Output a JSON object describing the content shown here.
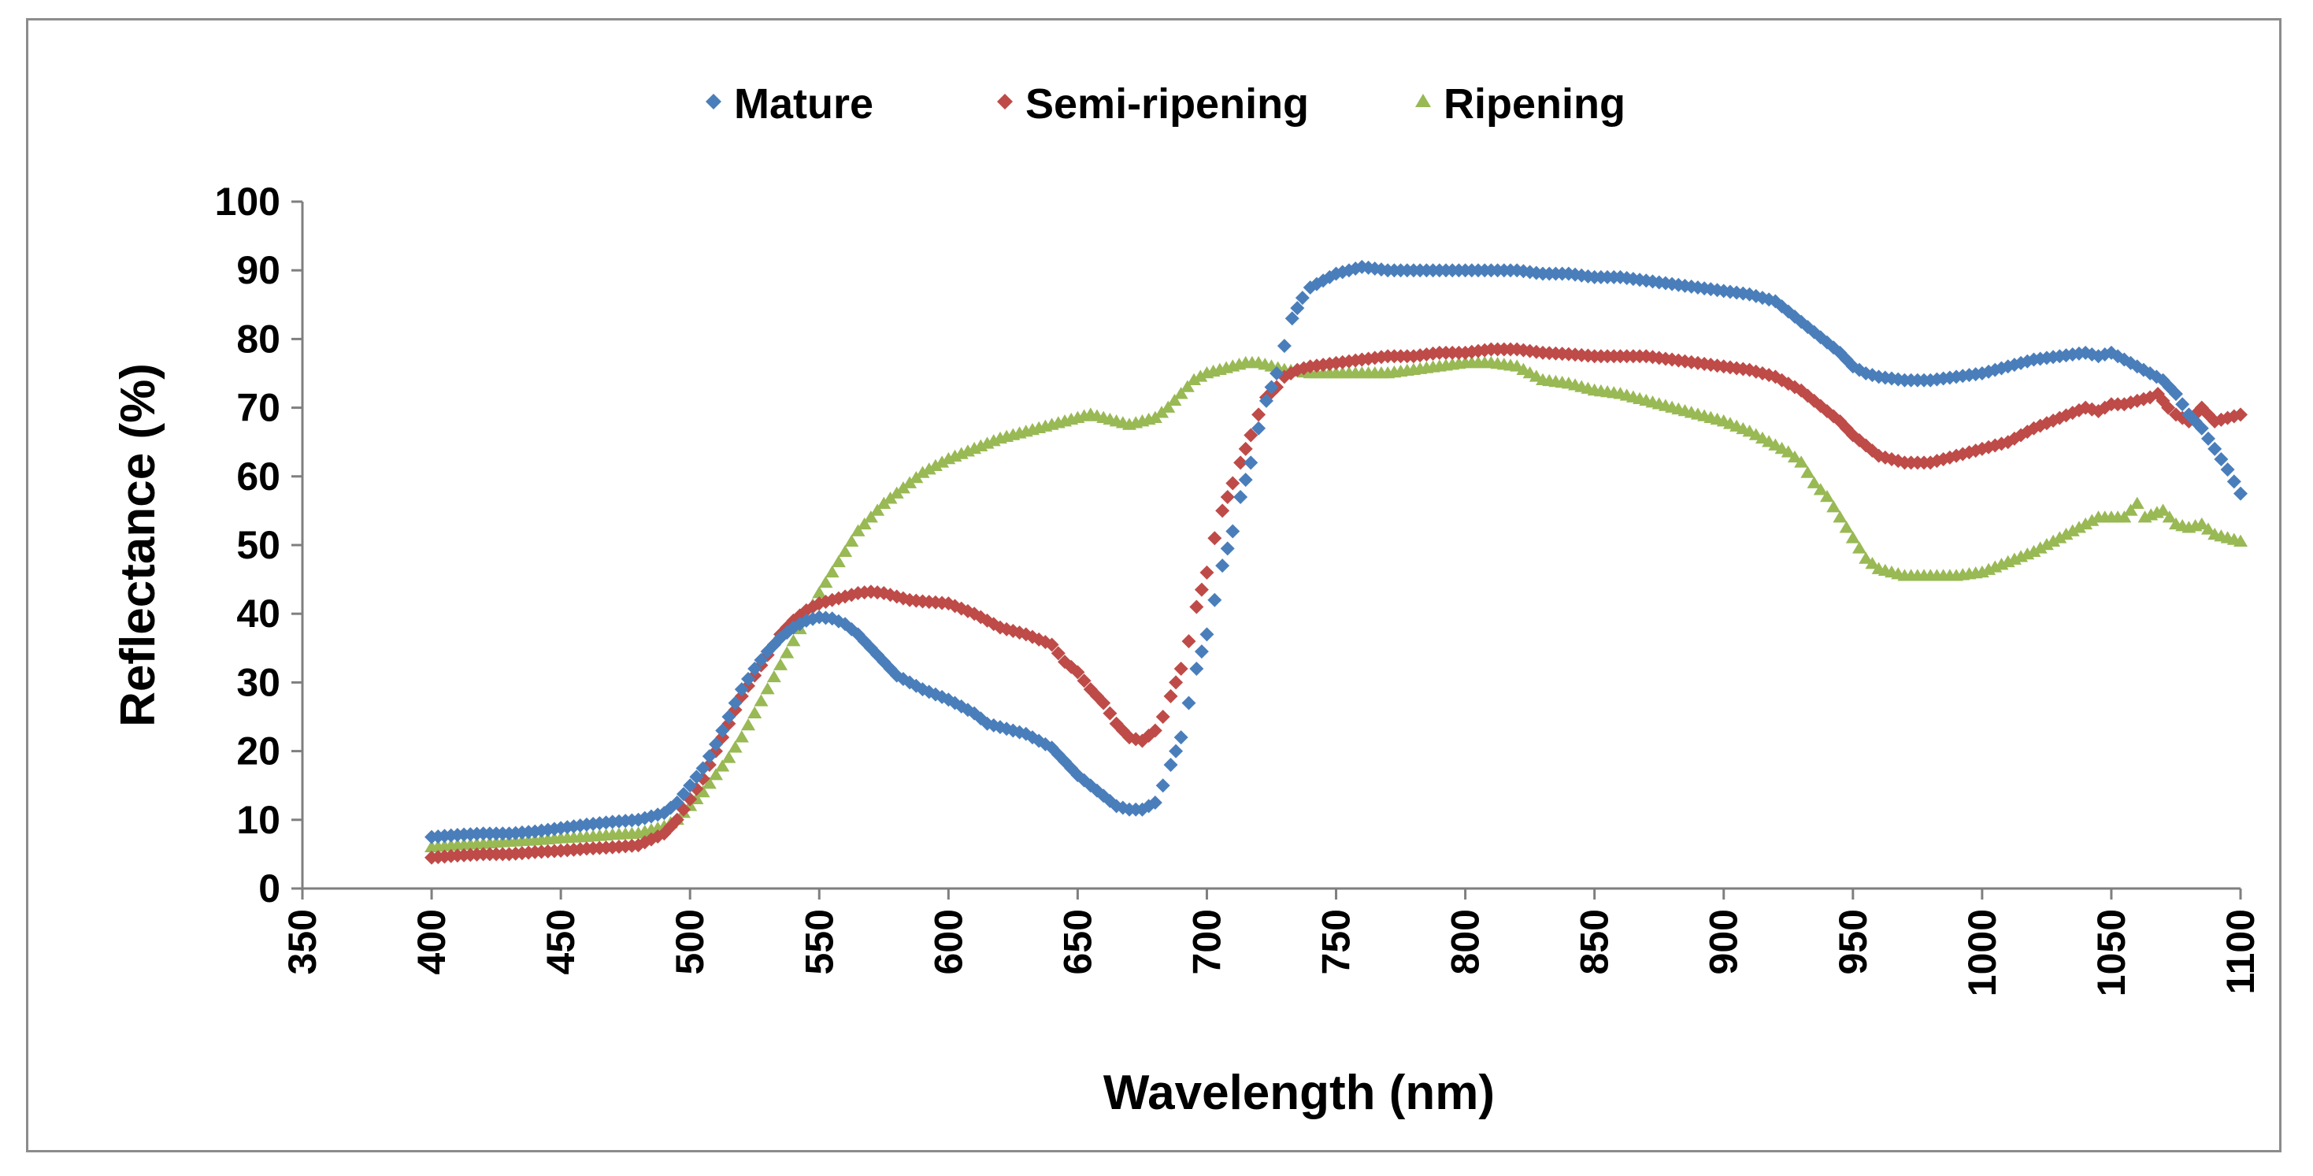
{
  "chart_data": {
    "type": "scatter",
    "title": "",
    "xlabel": "Wavelength (nm)",
    "ylabel": "Reflectance (%)",
    "xlim": [
      350,
      1100
    ],
    "ylim": [
      0,
      100
    ],
    "xticks": [
      350,
      400,
      450,
      500,
      550,
      600,
      650,
      700,
      750,
      800,
      850,
      900,
      950,
      1000,
      1050,
      1100
    ],
    "yticks": [
      0,
      10,
      20,
      30,
      40,
      50,
      60,
      70,
      80,
      90,
      100
    ],
    "grid": false,
    "legend_position": "top",
    "series": [
      {
        "name": "Mature",
        "color": "#4a7ebb",
        "marker": "diamond",
        "points": [
          [
            400,
            7.5
          ],
          [
            410,
            7.8
          ],
          [
            420,
            8
          ],
          [
            430,
            8
          ],
          [
            440,
            8.3
          ],
          [
            450,
            8.8
          ],
          [
            460,
            9.3
          ],
          [
            470,
            9.7
          ],
          [
            480,
            10
          ],
          [
            490,
            11
          ],
          [
            495,
            12.5
          ],
          [
            500,
            15
          ],
          [
            505,
            17.5
          ],
          [
            510,
            21
          ],
          [
            515,
            25
          ],
          [
            520,
            29
          ],
          [
            525,
            32
          ],
          [
            530,
            34.5
          ],
          [
            535,
            36.5
          ],
          [
            540,
            38
          ],
          [
            545,
            39
          ],
          [
            550,
            39.5
          ],
          [
            555,
            39.3
          ],
          [
            560,
            38.5
          ],
          [
            565,
            37
          ],
          [
            570,
            35
          ],
          [
            575,
            33
          ],
          [
            580,
            31
          ],
          [
            585,
            30
          ],
          [
            590,
            29
          ],
          [
            600,
            27.5
          ],
          [
            610,
            25.5
          ],
          [
            615,
            24
          ],
          [
            620,
            23.5
          ],
          [
            630,
            22.5
          ],
          [
            640,
            20.5
          ],
          [
            645,
            18.5
          ],
          [
            650,
            16.5
          ],
          [
            655,
            15
          ],
          [
            660,
            13.5
          ],
          [
            665,
            12
          ],
          [
            670,
            11.5
          ],
          [
            675,
            11.5
          ],
          [
            680,
            12.5
          ],
          [
            683,
            15
          ],
          [
            686,
            18
          ],
          [
            690,
            22
          ],
          [
            693,
            27
          ],
          [
            696,
            32
          ],
          [
            700,
            37
          ],
          [
            703,
            42
          ],
          [
            706,
            47
          ],
          [
            710,
            52
          ],
          [
            713,
            57
          ],
          [
            717,
            62
          ],
          [
            720,
            67
          ],
          [
            723,
            71
          ],
          [
            727,
            75
          ],
          [
            730,
            79
          ],
          [
            733,
            83
          ],
          [
            737,
            86
          ],
          [
            740,
            87.5
          ],
          [
            745,
            88.5
          ],
          [
            750,
            89.5
          ],
          [
            755,
            90
          ],
          [
            760,
            90.5
          ],
          [
            770,
            90
          ],
          [
            780,
            90
          ],
          [
            790,
            90
          ],
          [
            800,
            90
          ],
          [
            810,
            90
          ],
          [
            820,
            90
          ],
          [
            830,
            89.5
          ],
          [
            840,
            89.5
          ],
          [
            850,
            89
          ],
          [
            860,
            89
          ],
          [
            870,
            88.5
          ],
          [
            880,
            88
          ],
          [
            890,
            87.5
          ],
          [
            900,
            87
          ],
          [
            910,
            86.5
          ],
          [
            920,
            85.5
          ],
          [
            925,
            84
          ],
          [
            930,
            82.5
          ],
          [
            935,
            81
          ],
          [
            940,
            79.5
          ],
          [
            945,
            78
          ],
          [
            950,
            76
          ],
          [
            955,
            75
          ],
          [
            960,
            74.5
          ],
          [
            970,
            74
          ],
          [
            980,
            74
          ],
          [
            990,
            74.5
          ],
          [
            1000,
            75
          ],
          [
            1010,
            76
          ],
          [
            1020,
            77
          ],
          [
            1030,
            77.5
          ],
          [
            1040,
            78
          ],
          [
            1045,
            77.5
          ],
          [
            1050,
            78
          ],
          [
            1055,
            77
          ],
          [
            1060,
            76
          ],
          [
            1065,
            75
          ],
          [
            1070,
            74
          ],
          [
            1075,
            72
          ],
          [
            1080,
            69
          ],
          [
            1085,
            67
          ],
          [
            1090,
            64
          ],
          [
            1095,
            61
          ],
          [
            1100,
            57.5
          ]
        ]
      },
      {
        "name": "Semi-ripening",
        "color": "#be4b48",
        "marker": "diamond",
        "points": [
          [
            400,
            4.5
          ],
          [
            410,
            4.8
          ],
          [
            420,
            5
          ],
          [
            430,
            5
          ],
          [
            440,
            5.3
          ],
          [
            450,
            5.5
          ],
          [
            460,
            5.8
          ],
          [
            470,
            6
          ],
          [
            480,
            6.3
          ],
          [
            490,
            8
          ],
          [
            495,
            10
          ],
          [
            500,
            13
          ],
          [
            505,
            16
          ],
          [
            510,
            20
          ],
          [
            515,
            24
          ],
          [
            520,
            28
          ],
          [
            525,
            31
          ],
          [
            530,
            34
          ],
          [
            535,
            37
          ],
          [
            540,
            39
          ],
          [
            545,
            40.5
          ],
          [
            550,
            41.5
          ],
          [
            555,
            42
          ],
          [
            560,
            42.5
          ],
          [
            565,
            43
          ],
          [
            570,
            43.2
          ],
          [
            575,
            43
          ],
          [
            580,
            42.5
          ],
          [
            585,
            42
          ],
          [
            590,
            41.8
          ],
          [
            600,
            41.5
          ],
          [
            610,
            40
          ],
          [
            620,
            38
          ],
          [
            630,
            37
          ],
          [
            640,
            35.5
          ],
          [
            645,
            33
          ],
          [
            650,
            31.5
          ],
          [
            655,
            29
          ],
          [
            660,
            27
          ],
          [
            665,
            24
          ],
          [
            670,
            22
          ],
          [
            675,
            21.5
          ],
          [
            680,
            23
          ],
          [
            683,
            25
          ],
          [
            686,
            28
          ],
          [
            690,
            32
          ],
          [
            693,
            36
          ],
          [
            696,
            41
          ],
          [
            700,
            46
          ],
          [
            703,
            51
          ],
          [
            706,
            55
          ],
          [
            710,
            59
          ],
          [
            713,
            62
          ],
          [
            717,
            66
          ],
          [
            720,
            69
          ],
          [
            723,
            71.5
          ],
          [
            727,
            73
          ],
          [
            730,
            74.5
          ],
          [
            735,
            75.5
          ],
          [
            740,
            76
          ],
          [
            750,
            76.5
          ],
          [
            760,
            77
          ],
          [
            770,
            77.5
          ],
          [
            780,
            77.5
          ],
          [
            790,
            78
          ],
          [
            800,
            78
          ],
          [
            810,
            78.5
          ],
          [
            820,
            78.5
          ],
          [
            830,
            78
          ],
          [
            840,
            77.8
          ],
          [
            850,
            77.5
          ],
          [
            860,
            77.5
          ],
          [
            870,
            77.5
          ],
          [
            880,
            77
          ],
          [
            890,
            76.5
          ],
          [
            900,
            76
          ],
          [
            910,
            75.5
          ],
          [
            920,
            74.5
          ],
          [
            925,
            73.5
          ],
          [
            930,
            72.5
          ],
          [
            935,
            71
          ],
          [
            940,
            69.5
          ],
          [
            945,
            68
          ],
          [
            950,
            66
          ],
          [
            955,
            64.5
          ],
          [
            960,
            63
          ],
          [
            970,
            62
          ],
          [
            980,
            62
          ],
          [
            990,
            63
          ],
          [
            1000,
            64
          ],
          [
            1010,
            65
          ],
          [
            1020,
            67
          ],
          [
            1030,
            68.5
          ],
          [
            1040,
            70
          ],
          [
            1045,
            69.5
          ],
          [
            1050,
            70.5
          ],
          [
            1055,
            70.5
          ],
          [
            1060,
            71
          ],
          [
            1065,
            71.5
          ],
          [
            1068,
            72
          ],
          [
            1072,
            70
          ],
          [
            1075,
            69
          ],
          [
            1080,
            68
          ],
          [
            1085,
            70
          ],
          [
            1090,
            68
          ],
          [
            1095,
            68.5
          ],
          [
            1100,
            69
          ]
        ]
      },
      {
        "name": "Ripening",
        "color": "#98b954",
        "marker": "triangle",
        "points": [
          [
            400,
            6
          ],
          [
            410,
            6.3
          ],
          [
            420,
            6.5
          ],
          [
            430,
            6.8
          ],
          [
            440,
            7
          ],
          [
            450,
            7.3
          ],
          [
            460,
            7.5
          ],
          [
            470,
            7.8
          ],
          [
            480,
            8
          ],
          [
            490,
            9
          ],
          [
            495,
            10
          ],
          [
            500,
            12
          ],
          [
            505,
            14
          ],
          [
            510,
            16.5
          ],
          [
            515,
            19
          ],
          [
            520,
            22
          ],
          [
            525,
            25.5
          ],
          [
            530,
            29
          ],
          [
            535,
            32.5
          ],
          [
            540,
            36
          ],
          [
            545,
            39.5
          ],
          [
            550,
            43
          ],
          [
            555,
            46
          ],
          [
            560,
            49
          ],
          [
            565,
            52
          ],
          [
            570,
            54
          ],
          [
            575,
            56
          ],
          [
            580,
            57.5
          ],
          [
            585,
            59
          ],
          [
            590,
            60.5
          ],
          [
            600,
            62.5
          ],
          [
            610,
            64
          ],
          [
            620,
            65.5
          ],
          [
            630,
            66.5
          ],
          [
            640,
            67.5
          ],
          [
            650,
            68.5
          ],
          [
            655,
            69
          ],
          [
            660,
            68.5
          ],
          [
            665,
            68
          ],
          [
            670,
            67.5
          ],
          [
            675,
            68
          ],
          [
            680,
            68.5
          ],
          [
            685,
            70
          ],
          [
            690,
            72
          ],
          [
            695,
            74
          ],
          [
            700,
            75
          ],
          [
            705,
            75.5
          ],
          [
            710,
            76
          ],
          [
            715,
            76.5
          ],
          [
            720,
            76.5
          ],
          [
            725,
            76
          ],
          [
            730,
            75.5
          ],
          [
            740,
            75
          ],
          [
            750,
            75
          ],
          [
            760,
            75
          ],
          [
            770,
            75
          ],
          [
            780,
            75.5
          ],
          [
            790,
            76
          ],
          [
            800,
            76.5
          ],
          [
            810,
            76.5
          ],
          [
            820,
            76
          ],
          [
            825,
            75
          ],
          [
            830,
            74
          ],
          [
            840,
            73.5
          ],
          [
            850,
            72.5
          ],
          [
            860,
            72
          ],
          [
            870,
            71
          ],
          [
            880,
            70
          ],
          [
            890,
            69
          ],
          [
            900,
            68
          ],
          [
            910,
            66.5
          ],
          [
            920,
            64.5
          ],
          [
            925,
            63.5
          ],
          [
            930,
            62
          ],
          [
            935,
            59
          ],
          [
            940,
            57
          ],
          [
            945,
            54
          ],
          [
            950,
            51
          ],
          [
            955,
            48
          ],
          [
            960,
            46.5
          ],
          [
            970,
            45.5
          ],
          [
            980,
            45.5
          ],
          [
            990,
            45.5
          ],
          [
            1000,
            46
          ],
          [
            1010,
            47.5
          ],
          [
            1020,
            49
          ],
          [
            1030,
            51
          ],
          [
            1040,
            53
          ],
          [
            1045,
            54
          ],
          [
            1050,
            54
          ],
          [
            1055,
            54
          ],
          [
            1060,
            56
          ],
          [
            1063,
            54
          ],
          [
            1070,
            55
          ],
          [
            1075,
            53
          ],
          [
            1080,
            52.5
          ],
          [
            1085,
            53
          ],
          [
            1090,
            51.5
          ],
          [
            1095,
            51
          ],
          [
            1100,
            50.5
          ]
        ]
      }
    ]
  }
}
